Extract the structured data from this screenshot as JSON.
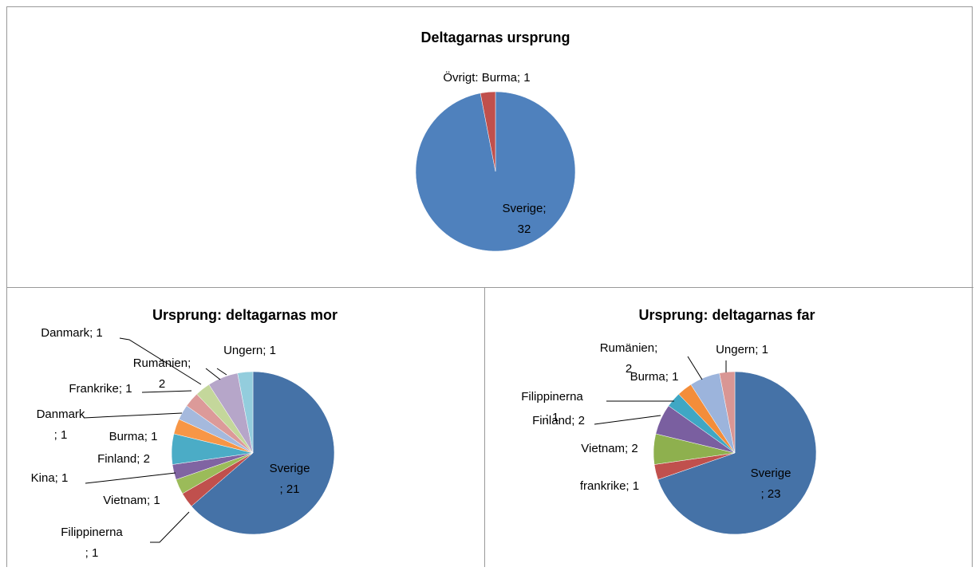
{
  "chart_data": [
    {
      "type": "pie",
      "title": "Deltagarnas ursprung",
      "values": [
        32,
        1
      ],
      "value_labels": [
        "Sverige;\n32",
        "Övrigt: Burma; 1"
      ],
      "colors": [
        "#4f81bd",
        "#c0504d"
      ]
    },
    {
      "type": "pie",
      "title": "Ursprung: deltagarnas mor",
      "values": [
        21,
        1,
        1,
        1,
        2,
        1,
        1,
        1,
        1,
        2,
        1
      ],
      "value_labels": [
        "Sverige\n; 21",
        "Filippinerna\n; 1",
        "Vietnam; 1",
        "Kina; 1",
        "Finland; 2",
        "Burma; 1",
        "Danmark\n; 1",
        "Frankrike; 1",
        "Danmark; 1",
        "Rumänien;\n2",
        "Ungern; 1"
      ],
      "colors": [
        "#4572a7",
        "#c0504d",
        "#9bbb59",
        "#8064a2",
        "#4bacc6",
        "#f79646",
        "#a5b9dd",
        "#dc9a99",
        "#c4d79b",
        "#b6a6c9",
        "#93cddd"
      ]
    },
    {
      "type": "pie",
      "title": "Ursprung: deltagarnas far",
      "values": [
        23,
        1,
        2,
        2,
        1,
        1,
        2,
        1
      ],
      "value_labels": [
        "Sverige\n; 23",
        "frankrike; 1",
        "Vietnam; 2",
        "Finland; 2",
        "Filippinerna\n; 1",
        "Burma; 1",
        "Rumänien;\n2",
        "Ungern; 1"
      ],
      "colors": [
        "#4572a7",
        "#c0504d",
        "#8eb04e",
        "#7a5fa0",
        "#3fa7c4",
        "#f38d3a",
        "#9cb4dc",
        "#d99694"
      ]
    }
  ]
}
